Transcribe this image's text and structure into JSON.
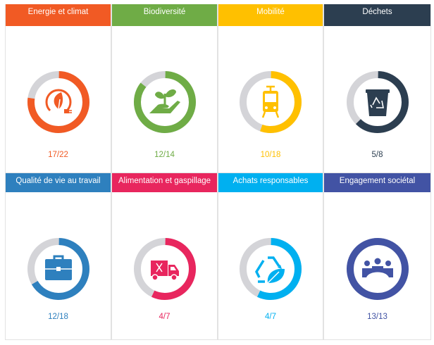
{
  "cards": [
    {
      "title": "Energie et climat",
      "score": "17/22",
      "value": 17,
      "total": 22,
      "color": "#f15a24",
      "icon": "leaf-plug-icon"
    },
    {
      "title": "Biodiversité",
      "score": "12/14",
      "value": 12,
      "total": 14,
      "color": "#6fac46",
      "icon": "hand-plant-icon"
    },
    {
      "title": "Mobilité",
      "score": "10/18",
      "value": 10,
      "total": 18,
      "color": "#ffc000",
      "icon": "tram-icon"
    },
    {
      "title": "Déchets",
      "score": "5/8",
      "value": 5,
      "total": 8,
      "color": "#2c3e50",
      "icon": "recycle-bin-icon"
    },
    {
      "title": "Qualité de vie au travail",
      "score": "12/18",
      "value": 12,
      "total": 18,
      "color": "#2e80be",
      "icon": "briefcase-icon"
    },
    {
      "title": "Alimentation et gaspillage",
      "score": "4/7",
      "value": 4,
      "total": 7,
      "color": "#e8265e",
      "icon": "food-truck-icon"
    },
    {
      "title": "Achats responsables",
      "score": "4/7",
      "value": 4,
      "total": 7,
      "color": "#00b0f0",
      "icon": "recycle-leaf-icon"
    },
    {
      "title": "Engagement sociétal",
      "score": "13/13",
      "value": 13,
      "total": 13,
      "color": "#4253a4",
      "icon": "group-icon"
    }
  ],
  "track_color": "#d4d4d8"
}
